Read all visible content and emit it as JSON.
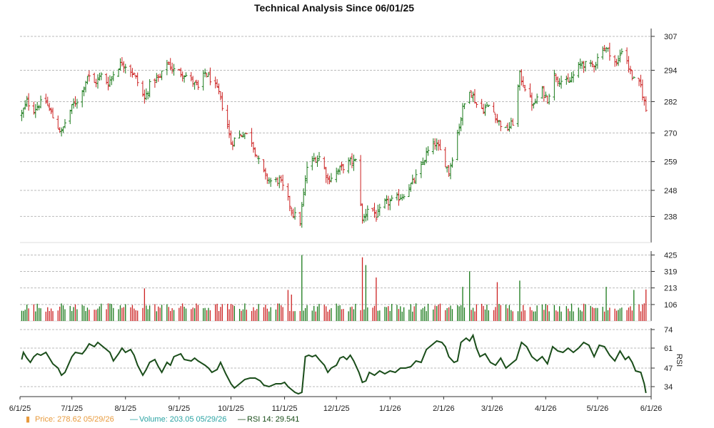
{
  "chart_data": {
    "type": "ohlc",
    "title": "Technical Analysis Since 06/01/25",
    "x_tick_labels": [
      "6/1/25",
      "7/1/25",
      "8/1/25",
      "9/1/25",
      "10/1/25",
      "11/1/25",
      "12/1/25",
      "1/1/26",
      "2/1/26",
      "3/1/26",
      "4/1/26",
      "5/1/26",
      "6/1/26"
    ],
    "x_range": [
      "2025-06-01",
      "2026-06-01"
    ],
    "price_panel": {
      "ylim": [
        228,
        310
      ],
      "y_ticks": [
        238,
        248,
        259,
        270,
        282,
        294,
        307
      ],
      "grid": true,
      "up_color": "#1a7a1a",
      "down_color": "#cc2222"
    },
    "volume_panel": {
      "ylim": [
        0,
        450
      ],
      "y_ticks": [
        106,
        213,
        319,
        425
      ],
      "grid": true
    },
    "rsi_panel": {
      "label": "RSI",
      "ylim": [
        27,
        75
      ],
      "y_ticks": [
        34,
        47,
        61,
        74
      ],
      "line_color": "#1a4d1a",
      "series": [
        {
          "x": "2025-06-02",
          "y": 53
        },
        {
          "x": "2025-06-03",
          "y": 58
        },
        {
          "x": "2025-06-05",
          "y": 54
        },
        {
          "x": "2025-06-07",
          "y": 51
        },
        {
          "x": "2025-06-09",
          "y": 55
        },
        {
          "x": "2025-06-11",
          "y": 57
        },
        {
          "x": "2025-06-13",
          "y": 56
        },
        {
          "x": "2025-06-16",
          "y": 58
        },
        {
          "x": "2025-06-18",
          "y": 54
        },
        {
          "x": "2025-06-20",
          "y": 50
        },
        {
          "x": "2025-06-23",
          "y": 47
        },
        {
          "x": "2025-06-25",
          "y": 42
        },
        {
          "x": "2025-06-27",
          "y": 44
        },
        {
          "x": "2025-07-01",
          "y": 55
        },
        {
          "x": "2025-07-03",
          "y": 58
        },
        {
          "x": "2025-07-07",
          "y": 57
        },
        {
          "x": "2025-07-09",
          "y": 60
        },
        {
          "x": "2025-07-11",
          "y": 64
        },
        {
          "x": "2025-07-14",
          "y": 62
        },
        {
          "x": "2025-07-16",
          "y": 65
        },
        {
          "x": "2025-07-18",
          "y": 63
        },
        {
          "x": "2025-07-21",
          "y": 60
        },
        {
          "x": "2025-07-23",
          "y": 58
        },
        {
          "x": "2025-07-25",
          "y": 52
        },
        {
          "x": "2025-07-28",
          "y": 57
        },
        {
          "x": "2025-07-30",
          "y": 61
        },
        {
          "x": "2025-08-01",
          "y": 58
        },
        {
          "x": "2025-08-04",
          "y": 60
        },
        {
          "x": "2025-08-06",
          "y": 56
        },
        {
          "x": "2025-08-08",
          "y": 49
        },
        {
          "x": "2025-08-11",
          "y": 42
        },
        {
          "x": "2025-08-13",
          "y": 46
        },
        {
          "x": "2025-08-15",
          "y": 51
        },
        {
          "x": "2025-08-18",
          "y": 53
        },
        {
          "x": "2025-08-20",
          "y": 48
        },
        {
          "x": "2025-08-22",
          "y": 44
        },
        {
          "x": "2025-08-25",
          "y": 51
        },
        {
          "x": "2025-08-27",
          "y": 49
        },
        {
          "x": "2025-08-29",
          "y": 55
        },
        {
          "x": "2025-09-02",
          "y": 57
        },
        {
          "x": "2025-09-04",
          "y": 53
        },
        {
          "x": "2025-09-08",
          "y": 52
        },
        {
          "x": "2025-09-10",
          "y": 54
        },
        {
          "x": "2025-09-12",
          "y": 52
        },
        {
          "x": "2025-09-16",
          "y": 49
        },
        {
          "x": "2025-09-18",
          "y": 47
        },
        {
          "x": "2025-09-20",
          "y": 44
        },
        {
          "x": "2025-09-23",
          "y": 46
        },
        {
          "x": "2025-09-25",
          "y": 51
        },
        {
          "x": "2025-09-28",
          "y": 43
        },
        {
          "x": "2025-10-01",
          "y": 36
        },
        {
          "x": "2025-10-03",
          "y": 33
        },
        {
          "x": "2025-10-06",
          "y": 36
        },
        {
          "x": "2025-10-09",
          "y": 39
        },
        {
          "x": "2025-10-12",
          "y": 40
        },
        {
          "x": "2025-10-15",
          "y": 40
        },
        {
          "x": "2025-10-18",
          "y": 38
        },
        {
          "x": "2025-10-20",
          "y": 35
        },
        {
          "x": "2025-10-23",
          "y": 34
        },
        {
          "x": "2025-10-25",
          "y": 35
        },
        {
          "x": "2025-10-27",
          "y": 36
        },
        {
          "x": "2025-10-30",
          "y": 36
        },
        {
          "x": "2025-11-01",
          "y": 37
        },
        {
          "x": "2025-11-03",
          "y": 34
        },
        {
          "x": "2025-11-05",
          "y": 32
        },
        {
          "x": "2025-11-07",
          "y": 30
        },
        {
          "x": "2025-11-09",
          "y": 29
        },
        {
          "x": "2025-11-11",
          "y": 30
        },
        {
          "x": "2025-11-13",
          "y": 55
        },
        {
          "x": "2025-11-15",
          "y": 56
        },
        {
          "x": "2025-11-17",
          "y": 55
        },
        {
          "x": "2025-11-19",
          "y": 56
        },
        {
          "x": "2025-11-21",
          "y": 53
        },
        {
          "x": "2025-11-24",
          "y": 49
        },
        {
          "x": "2025-11-26",
          "y": 44
        },
        {
          "x": "2025-11-28",
          "y": 47
        },
        {
          "x": "2025-12-01",
          "y": 49
        },
        {
          "x": "2025-12-03",
          "y": 54
        },
        {
          "x": "2025-12-05",
          "y": 55
        },
        {
          "x": "2025-12-07",
          "y": 53
        },
        {
          "x": "2025-12-09",
          "y": 56
        },
        {
          "x": "2025-12-11",
          "y": 52
        },
        {
          "x": "2025-12-14",
          "y": 44
        },
        {
          "x": "2025-12-16",
          "y": 37
        },
        {
          "x": "2025-12-18",
          "y": 38
        },
        {
          "x": "2025-12-20",
          "y": 44
        },
        {
          "x": "2025-12-23",
          "y": 42
        },
        {
          "x": "2025-12-26",
          "y": 45
        },
        {
          "x": "2025-12-29",
          "y": 43
        },
        {
          "x": "2026-01-01",
          "y": 45
        },
        {
          "x": "2026-01-04",
          "y": 44
        },
        {
          "x": "2026-01-07",
          "y": 47
        },
        {
          "x": "2026-01-10",
          "y": 47
        },
        {
          "x": "2026-01-13",
          "y": 48
        },
        {
          "x": "2026-01-16",
          "y": 52
        },
        {
          "x": "2026-01-19",
          "y": 51
        },
        {
          "x": "2026-01-22",
          "y": 60
        },
        {
          "x": "2026-01-25",
          "y": 63
        },
        {
          "x": "2026-01-28",
          "y": 66
        },
        {
          "x": "2026-01-31",
          "y": 65
        },
        {
          "x": "2026-02-02",
          "y": 62
        },
        {
          "x": "2026-02-04",
          "y": 55
        },
        {
          "x": "2026-02-07",
          "y": 51
        },
        {
          "x": "2026-02-09",
          "y": 52
        },
        {
          "x": "2026-02-11",
          "y": 65
        },
        {
          "x": "2026-02-14",
          "y": 68
        },
        {
          "x": "2026-02-16",
          "y": 66
        },
        {
          "x": "2026-02-18",
          "y": 70
        },
        {
          "x": "2026-02-20",
          "y": 61
        },
        {
          "x": "2026-02-22",
          "y": 55
        },
        {
          "x": "2026-02-25",
          "y": 57
        },
        {
          "x": "2026-02-28",
          "y": 51
        },
        {
          "x": "2026-03-03",
          "y": 49
        },
        {
          "x": "2026-03-06",
          "y": 54
        },
        {
          "x": "2026-03-09",
          "y": 47
        },
        {
          "x": "2026-03-12",
          "y": 50
        },
        {
          "x": "2026-03-15",
          "y": 53
        },
        {
          "x": "2026-03-18",
          "y": 65
        },
        {
          "x": "2026-03-21",
          "y": 62
        },
        {
          "x": "2026-03-24",
          "y": 55
        },
        {
          "x": "2026-03-27",
          "y": 52
        },
        {
          "x": "2026-03-30",
          "y": 55
        },
        {
          "x": "2026-04-02",
          "y": 50
        },
        {
          "x": "2026-04-05",
          "y": 62
        },
        {
          "x": "2026-04-08",
          "y": 59
        },
        {
          "x": "2026-04-11",
          "y": 58
        },
        {
          "x": "2026-04-14",
          "y": 61
        },
        {
          "x": "2026-04-17",
          "y": 58
        },
        {
          "x": "2026-04-20",
          "y": 61
        },
        {
          "x": "2026-04-23",
          "y": 65
        },
        {
          "x": "2026-04-26",
          "y": 63
        },
        {
          "x": "2026-04-29",
          "y": 55
        },
        {
          "x": "2026-05-02",
          "y": 63
        },
        {
          "x": "2026-05-05",
          "y": 62
        },
        {
          "x": "2026-05-08",
          "y": 56
        },
        {
          "x": "2026-05-11",
          "y": 52
        },
        {
          "x": "2026-05-14",
          "y": 59
        },
        {
          "x": "2026-05-17",
          "y": 53
        },
        {
          "x": "2026-05-19",
          "y": 55
        },
        {
          "x": "2026-05-21",
          "y": 51
        },
        {
          "x": "2026-05-23",
          "y": 45
        },
        {
          "x": "2026-05-26",
          "y": 44
        },
        {
          "x": "2026-05-28",
          "y": 36
        },
        {
          "x": "2026-05-29",
          "y": 29.541
        }
      ]
    },
    "price_path": [
      {
        "x": "2025-06-02",
        "y": 277
      },
      {
        "x": "2025-06-05",
        "y": 282
      },
      {
        "x": "2025-06-09",
        "y": 279
      },
      {
        "x": "2025-06-12",
        "y": 281
      },
      {
        "x": "2025-06-16",
        "y": 282
      },
      {
        "x": "2025-06-20",
        "y": 276
      },
      {
        "x": "2025-06-25",
        "y": 270
      },
      {
        "x": "2025-06-28",
        "y": 276
      },
      {
        "x": "2025-07-02",
        "y": 281
      },
      {
        "x": "2025-07-06",
        "y": 284
      },
      {
        "x": "2025-07-10",
        "y": 292
      },
      {
        "x": "2025-07-14",
        "y": 289
      },
      {
        "x": "2025-07-18",
        "y": 292
      },
      {
        "x": "2025-07-22",
        "y": 289
      },
      {
        "x": "2025-07-26",
        "y": 294
      },
      {
        "x": "2025-07-30",
        "y": 297
      },
      {
        "x": "2025-08-03",
        "y": 295
      },
      {
        "x": "2025-08-07",
        "y": 291
      },
      {
        "x": "2025-08-12",
        "y": 283
      },
      {
        "x": "2025-08-16",
        "y": 290
      },
      {
        "x": "2025-08-21",
        "y": 291
      },
      {
        "x": "2025-08-25",
        "y": 297
      },
      {
        "x": "2025-08-29",
        "y": 294
      },
      {
        "x": "2025-09-03",
        "y": 293
      },
      {
        "x": "2025-09-07",
        "y": 291
      },
      {
        "x": "2025-09-12",
        "y": 287
      },
      {
        "x": "2025-09-16",
        "y": 293
      },
      {
        "x": "2025-09-20",
        "y": 290
      },
      {
        "x": "2025-09-24",
        "y": 285
      },
      {
        "x": "2025-09-28",
        "y": 276
      },
      {
        "x": "2025-10-01",
        "y": 266
      },
      {
        "x": "2025-10-05",
        "y": 269
      },
      {
        "x": "2025-10-09",
        "y": 270
      },
      {
        "x": "2025-10-13",
        "y": 267
      },
      {
        "x": "2025-10-17",
        "y": 259
      },
      {
        "x": "2025-10-21",
        "y": 253
      },
      {
        "x": "2025-10-25",
        "y": 251
      },
      {
        "x": "2025-10-29",
        "y": 252
      },
      {
        "x": "2025-11-02",
        "y": 246
      },
      {
        "x": "2025-11-06",
        "y": 239
      },
      {
        "x": "2025-11-10",
        "y": 236
      },
      {
        "x": "2025-11-14",
        "y": 257
      },
      {
        "x": "2025-11-18",
        "y": 260
      },
      {
        "x": "2025-11-22",
        "y": 261
      },
      {
        "x": "2025-11-26",
        "y": 252
      },
      {
        "x": "2025-12-01",
        "y": 255
      },
      {
        "x": "2025-12-05",
        "y": 257
      },
      {
        "x": "2025-12-09",
        "y": 259
      },
      {
        "x": "2025-12-13",
        "y": 259
      },
      {
        "x": "2025-12-16",
        "y": 236
      },
      {
        "x": "2025-12-20",
        "y": 243
      },
      {
        "x": "2025-12-24",
        "y": 238
      },
      {
        "x": "2025-12-29",
        "y": 243
      },
      {
        "x": "2026-01-03",
        "y": 244
      },
      {
        "x": "2026-01-08",
        "y": 246
      },
      {
        "x": "2026-01-13",
        "y": 250
      },
      {
        "x": "2026-01-18",
        "y": 255
      },
      {
        "x": "2026-01-22",
        "y": 262
      },
      {
        "x": "2026-01-27",
        "y": 266
      },
      {
        "x": "2026-01-31",
        "y": 262
      },
      {
        "x": "2026-02-04",
        "y": 255
      },
      {
        "x": "2026-02-08",
        "y": 267
      },
      {
        "x": "2026-02-12",
        "y": 279
      },
      {
        "x": "2026-02-16",
        "y": 287
      },
      {
        "x": "2026-02-20",
        "y": 281
      },
      {
        "x": "2026-02-24",
        "y": 279
      },
      {
        "x": "2026-02-28",
        "y": 281
      },
      {
        "x": "2026-03-04",
        "y": 275
      },
      {
        "x": "2026-03-09",
        "y": 271
      },
      {
        "x": "2026-03-13",
        "y": 274
      },
      {
        "x": "2026-03-17",
        "y": 292
      },
      {
        "x": "2026-03-21",
        "y": 286
      },
      {
        "x": "2026-03-25",
        "y": 280
      },
      {
        "x": "2026-03-29",
        "y": 287
      },
      {
        "x": "2026-04-02",
        "y": 283
      },
      {
        "x": "2026-04-06",
        "y": 292
      },
      {
        "x": "2026-04-10",
        "y": 290
      },
      {
        "x": "2026-04-14",
        "y": 289
      },
      {
        "x": "2026-04-18",
        "y": 293
      },
      {
        "x": "2026-04-22",
        "y": 297
      },
      {
        "x": "2026-04-26",
        "y": 295
      },
      {
        "x": "2026-04-30",
        "y": 297
      },
      {
        "x": "2026-05-04",
        "y": 303
      },
      {
        "x": "2026-05-08",
        "y": 301
      },
      {
        "x": "2026-05-12",
        "y": 296
      },
      {
        "x": "2026-05-16",
        "y": 304
      },
      {
        "x": "2026-05-19",
        "y": 295
      },
      {
        "x": "2026-05-22",
        "y": 290
      },
      {
        "x": "2026-05-26",
        "y": 288
      },
      {
        "x": "2026-05-29",
        "y": 278.62
      }
    ],
    "volume_spikes": [
      {
        "x": "2025-11-11",
        "y": 425
      },
      {
        "x": "2025-11-05",
        "y": 170
      },
      {
        "x": "2025-12-16",
        "y": 410
      },
      {
        "x": "2025-12-18",
        "y": 360
      },
      {
        "x": "2025-12-20",
        "y": 300
      },
      {
        "x": "2025-12-24",
        "y": 280
      },
      {
        "x": "2025-11-03",
        "y": 200
      },
      {
        "x": "2025-07-12",
        "y": 230
      },
      {
        "x": "2025-06-22",
        "y": 180
      },
      {
        "x": "2025-08-12",
        "y": 210
      },
      {
        "x": "2025-09-28",
        "y": 190
      },
      {
        "x": "2026-02-16",
        "y": 320
      },
      {
        "x": "2026-02-12",
        "y": 220
      },
      {
        "x": "2026-03-17",
        "y": 260
      },
      {
        "x": "2026-03-04",
        "y": 250
      },
      {
        "x": "2026-01-31",
        "y": 220
      },
      {
        "x": "2026-05-06",
        "y": 220
      },
      {
        "x": "2026-05-22",
        "y": 200
      },
      {
        "x": "2026-05-29",
        "y": 203.05
      }
    ],
    "legend": [
      {
        "marker": "▮",
        "text": "Price: 278.62  05/29/26",
        "color": "#e89a3c"
      },
      {
        "marker": "—",
        "text": "Volume: 203.05  05/29/26",
        "color": "#2aa3a3"
      },
      {
        "marker": "—",
        "text": "RSI 14: 29.541",
        "color": "#1a4d1a"
      }
    ]
  }
}
